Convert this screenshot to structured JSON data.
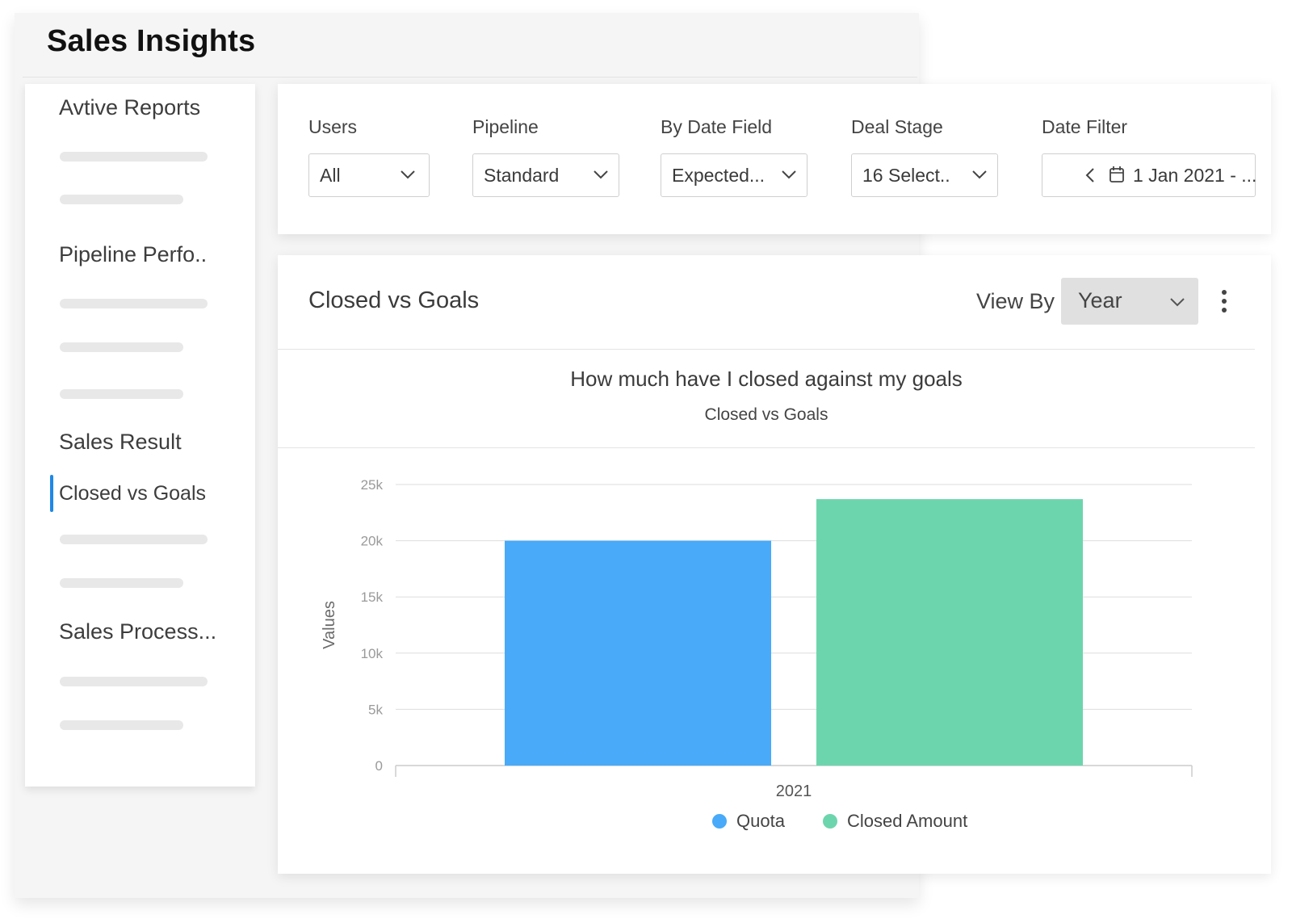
{
  "app": {
    "title": "Sales Insights"
  },
  "sidebar": {
    "sections": [
      {
        "label": "Avtive Reports"
      },
      {
        "label": "Pipeline Perfo.."
      },
      {
        "label": "Sales Result"
      },
      {
        "label": "Sales Process..."
      }
    ],
    "active_item": {
      "label": "Closed vs Goals"
    },
    "accent_color": "#1e88e5"
  },
  "filters": [
    {
      "label": "Users",
      "value": "All"
    },
    {
      "label": "Pipeline",
      "value": "Standard"
    },
    {
      "label": "By Date Field",
      "value": "Expected..."
    },
    {
      "label": "Deal Stage",
      "value": "16 Select.."
    },
    {
      "label": "Date Filter",
      "value": "1 Jan 2021 - ..."
    }
  ],
  "card": {
    "title": "Closed vs Goals",
    "view_by_label": "View By",
    "view_by_value": "Year",
    "menu_icon": "kebab-menu-icon"
  },
  "chart_data": {
    "type": "bar",
    "title": "How much have I closed against my goals",
    "subtitle": "Closed vs Goals",
    "ylabel": "Values",
    "xlabel": "",
    "categories": [
      "2021"
    ],
    "series": [
      {
        "name": "Quota",
        "values": [
          20000
        ],
        "color": "#48aaf8"
      },
      {
        "name": "Closed Amount",
        "values": [
          23700
        ],
        "color": "#6dd5ad"
      }
    ],
    "ylim": [
      0,
      25000
    ],
    "yticks": [
      {
        "value": 0,
        "label": "0"
      },
      {
        "value": 5000,
        "label": "5k"
      },
      {
        "value": 10000,
        "label": "10k"
      },
      {
        "value": 15000,
        "label": "15k"
      },
      {
        "value": 20000,
        "label": "20k"
      },
      {
        "value": 25000,
        "label": "25k"
      }
    ],
    "grid": true,
    "legend_position": "bottom-center"
  }
}
